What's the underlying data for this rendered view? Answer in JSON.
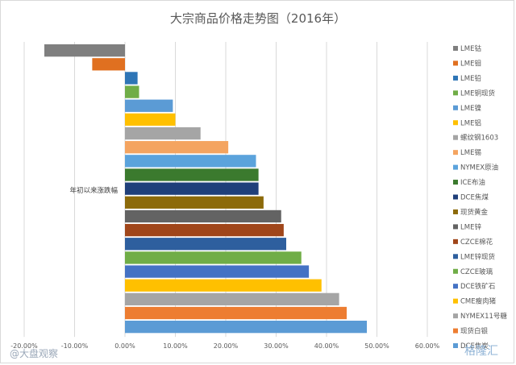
{
  "chart_data": {
    "type": "bar",
    "orientation": "horizontal",
    "title": "大宗商品价格走势图（2016年）",
    "category_label": "年初以来涨跌幅",
    "xlabel": "",
    "ylabel": "",
    "xlim": [
      -0.2,
      0.6
    ],
    "x_ticks": [
      "-20.00%",
      "-10.00%",
      "0.00%",
      "10.00%",
      "20.00%",
      "30.00%",
      "40.00%",
      "50.00%",
      "60.00%"
    ],
    "grid": true,
    "legend_position": "right",
    "series": [
      {
        "name": "LME钴",
        "value": -0.16,
        "color": "#7f7f7f"
      },
      {
        "name": "LME钼",
        "value": -0.065,
        "color": "#e07020"
      },
      {
        "name": "LME铅",
        "value": 0.025,
        "color": "#2e75b6"
      },
      {
        "name": "LME铜现货",
        "value": 0.028,
        "color": "#70ad47"
      },
      {
        "name": "LME镍",
        "value": 0.095,
        "color": "#5b9bd5"
      },
      {
        "name": "LME铝",
        "value": 0.1,
        "color": "#ffc000"
      },
      {
        "name": "螺纹钢1603",
        "value": 0.15,
        "color": "#a5a5a5"
      },
      {
        "name": "LME锡",
        "value": 0.205,
        "color": "#f4a460"
      },
      {
        "name": "NYMEX原油",
        "value": 0.26,
        "color": "#5ba3dc"
      },
      {
        "name": "ICE布油",
        "value": 0.265,
        "color": "#3b7a2e"
      },
      {
        "name": "DCE焦煤",
        "value": 0.265,
        "color": "#1f3f7a"
      },
      {
        "name": "现货黄金",
        "value": 0.275,
        "color": "#8c6a0a"
      },
      {
        "name": "LME锌",
        "value": 0.31,
        "color": "#636363"
      },
      {
        "name": "CZCE棉花",
        "value": 0.315,
        "color": "#a0461a"
      },
      {
        "name": "LME锌现货",
        "value": 0.32,
        "color": "#2e5f9e"
      },
      {
        "name": "CZCE玻璃",
        "value": 0.35,
        "color": "#70ad47"
      },
      {
        "name": "DCE铁矿石",
        "value": 0.365,
        "color": "#4472c4"
      },
      {
        "name": "CME瘦肉猪",
        "value": 0.39,
        "color": "#ffc000"
      },
      {
        "name": "NYMEX11号糖",
        "value": 0.425,
        "color": "#a5a5a5"
      },
      {
        "name": "现货白银",
        "value": 0.44,
        "color": "#ed7d31"
      },
      {
        "name": "DCE焦炭",
        "value": 0.48,
        "color": "#5b9bd5"
      }
    ]
  },
  "watermarks": {
    "left": "@大盘观察",
    "right": "格隆汇"
  }
}
